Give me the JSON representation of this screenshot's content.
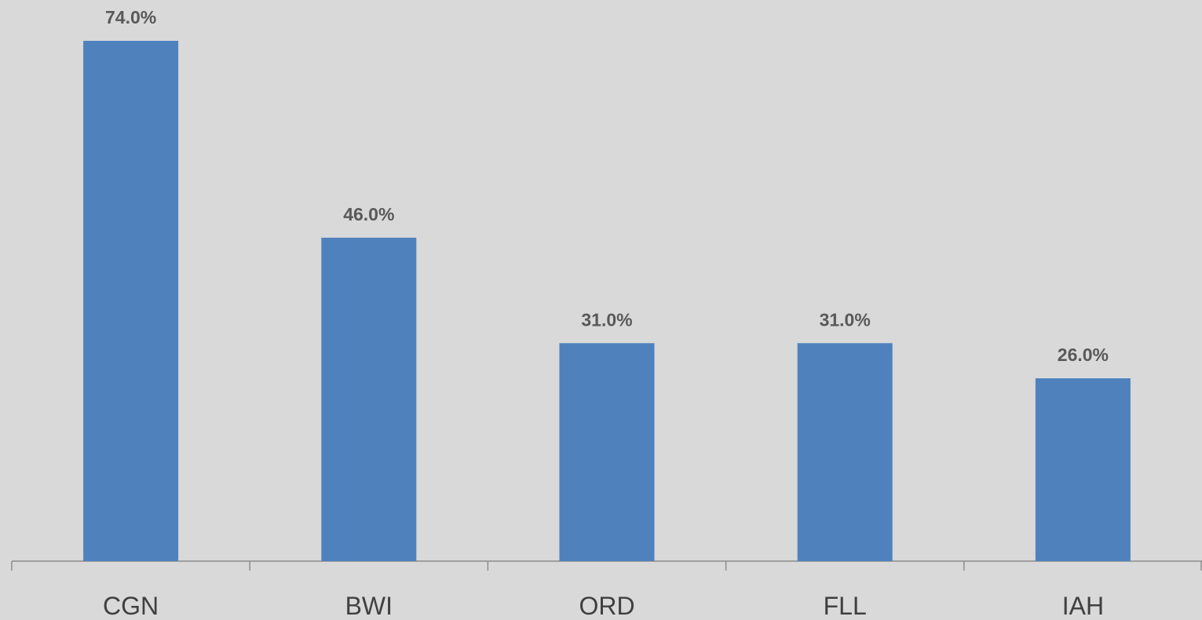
{
  "chart_data": {
    "type": "bar",
    "categories": [
      "CGN",
      "BWI",
      "ORD",
      "FLL",
      "IAH"
    ],
    "values": [
      74,
      46,
      31,
      31,
      26
    ],
    "value_labels": [
      "74.0%",
      "46.0%",
      "31.0%",
      "31.0%",
      "26.0%"
    ],
    "color": "#4f81bd"
  }
}
